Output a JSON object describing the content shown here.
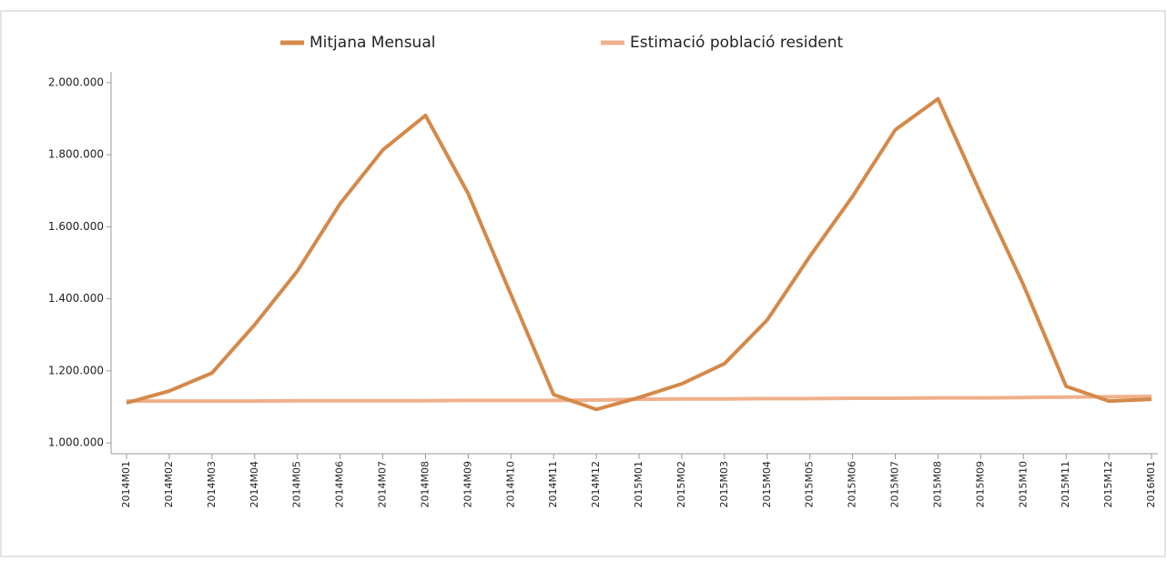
{
  "chart_data": {
    "type": "line",
    "categories": [
      "2014M01",
      "2014M02",
      "2014M03",
      "2014M04",
      "2014M05",
      "2014M06",
      "2014M07",
      "2014M08",
      "2014M09",
      "2014M10",
      "2014M11",
      "2014M12",
      "2015M01",
      "2015M02",
      "2015M03",
      "2015M04",
      "2015M05",
      "2015M06",
      "2015M07",
      "2015M08",
      "2015M09",
      "2015M10",
      "2015M11",
      "2015M12",
      "2016M01"
    ],
    "series": [
      {
        "name": "Mitjana Mensual",
        "color": "#d4894a",
        "values": [
          1111000,
          1144000,
          1194000,
          1328000,
          1477000,
          1664000,
          1813000,
          1909000,
          1692000,
          1412000,
          1134000,
          1093000,
          1126000,
          1164000,
          1220000,
          1341000,
          1518000,
          1684000,
          1869000,
          1955000,
          1692000,
          1439000,
          1157000,
          1116000,
          1121000
        ]
      },
      {
        "name": "Estimació població resident",
        "color": "#f0b08c",
        "values": [
          1116000,
          1116000,
          1116000,
          1116000,
          1117000,
          1117000,
          1117000,
          1117000,
          1118000,
          1118000,
          1118000,
          1119000,
          1121000,
          1122000,
          1122000,
          1123000,
          1123000,
          1124000,
          1124000,
          1125000,
          1125000,
          1126000,
          1127000,
          1128000,
          1129000
        ]
      }
    ],
    "ylim": [
      970000,
      2030000
    ],
    "yticks": [
      {
        "value": 1000000,
        "label": "1.000.000"
      },
      {
        "value": 1200000,
        "label": "1.200.000"
      },
      {
        "value": 1400000,
        "label": "1.400.000"
      },
      {
        "value": 1600000,
        "label": "1.600.000"
      },
      {
        "value": 1800000,
        "label": "1.800.000"
      },
      {
        "value": 2000000,
        "label": "2.000.000"
      }
    ],
    "legend": "top"
  }
}
